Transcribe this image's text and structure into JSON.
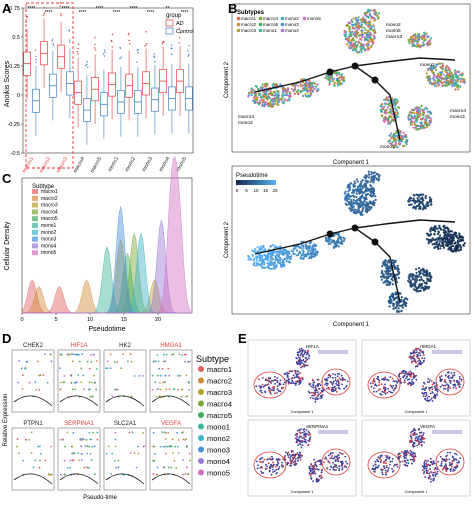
{
  "panels": {
    "A": {
      "label": "A",
      "ylabel": "Anoikis Scores",
      "legend_title": "group",
      "legend_items": [
        "AD",
        "Control"
      ]
    },
    "B": {
      "label": "B",
      "legend_title": "Subtypes",
      "xlabel": "Component 1",
      "ylabel": "Component 2",
      "legend_items": [
        "macro1",
        "macro2",
        "macro3",
        "macro4",
        "macro5",
        "mono1",
        "mono2",
        "mono3",
        "mono4",
        "mono5"
      ],
      "cluster_labels": [
        "mono2",
        "mono5",
        "macro3",
        "mono2",
        "macro4",
        "mono3",
        "macro4",
        "mono3",
        "mono1"
      ]
    },
    "C": {
      "label": "C",
      "legend_title": "Subtype",
      "xlabel": "Pseudotime",
      "ylabel": "Cellular Density"
    },
    "C2": {
      "legend_title": "Pseudotime",
      "xlabel": "Component 1",
      "ylabel": "Component 2",
      "colorbar_ticks": [
        "0",
        "5",
        "10",
        "15",
        "20"
      ]
    },
    "D": {
      "label": "D",
      "xlabel": "Pseudo-time",
      "ylabel": "Relative Expression",
      "genes": [
        "CHEK2",
        "HIF1A",
        "HK2",
        "HMGA1",
        "PTPN1",
        "SERPINA1",
        "SLC2A1",
        "VEGFA"
      ],
      "gene_colors": [
        "#222222",
        "#e23a3a",
        "#222222",
        "#e23a3a",
        "#222222",
        "#e23a3a",
        "#222222",
        "#e23a3a"
      ],
      "legend_title": "Subtype"
    },
    "E": {
      "label": "E",
      "genes": [
        "HIF1A",
        "HMGA1",
        "SERPINA1",
        "VEGFA"
      ],
      "xlabel": "Component 1"
    }
  },
  "subtype_colors": [
    "#e0605e",
    "#d18a3a",
    "#b6a030",
    "#7aa637",
    "#41ad54",
    "#3fb59c",
    "#3db3c9",
    "#4a90d9",
    "#9a78d6",
    "#d26fc4"
  ],
  "chart_data": [
    {
      "type": "box",
      "panel": "A",
      "categories": [
        "macro1",
        "macro2",
        "macro3",
        "macro4",
        "macro5",
        "mono1",
        "mono2",
        "mono3",
        "mono4",
        "mono5"
      ],
      "series": [
        {
          "name": "AD",
          "median": [
            0.27,
            0.36,
            0.33,
            0.02,
            0.05,
            0.09,
            0.08,
            0.1,
            0.12,
            0.12
          ]
        },
        {
          "name": "Control",
          "median": [
            -0.05,
            0.08,
            0.1,
            -0.13,
            -0.08,
            -0.06,
            -0.06,
            -0.04,
            -0.03,
            -0.03
          ]
        }
      ],
      "significance": [
        "****",
        "****",
        "****",
        "****",
        "****",
        "****",
        "****",
        "****",
        "**",
        "****"
      ],
      "ylim": [
        -0.5,
        0.75
      ],
      "yticks": [
        "-0.5",
        "-0.25",
        "0",
        "0.25",
        "0.5",
        "0.75"
      ],
      "ylabel": "Anoikis Scores"
    },
    {
      "type": "area",
      "panel": "C",
      "x_range": [
        0,
        25
      ],
      "xticks": [
        "0",
        "5",
        "10",
        "15",
        "20"
      ],
      "series": [
        {
          "name": "macro1",
          "peaks": [
            [
              1.5,
              0.25
            ],
            [
              5.5,
              0.2
            ]
          ]
        },
        {
          "name": "macro2",
          "peaks": [
            [
              2.5,
              0.2
            ],
            [
              9.5,
              0.25
            ]
          ]
        },
        {
          "name": "macro3",
          "peaks": [
            [
              14.5,
              0.55
            ],
            [
              19.5,
              0.25
            ]
          ]
        },
        {
          "name": "macro4",
          "peaks": [
            [
              16.5,
              0.6
            ]
          ]
        },
        {
          "name": "macro5",
          "peaks": [
            [
              15.5,
              0.45
            ]
          ]
        },
        {
          "name": "mono1",
          "peaks": [
            [
              12.5,
              0.5
            ]
          ]
        },
        {
          "name": "mono2",
          "peaks": [
            [
              17.5,
              0.6
            ]
          ]
        },
        {
          "name": "mono3",
          "peaks": [
            [
              14.5,
              0.8
            ]
          ]
        },
        {
          "name": "mono4",
          "peaks": [
            [
              20.5,
              0.7
            ]
          ]
        },
        {
          "name": "mono5",
          "peaks": [
            [
              22,
              0.85
            ],
            [
              23,
              0.75
            ]
          ]
        }
      ]
    }
  ]
}
